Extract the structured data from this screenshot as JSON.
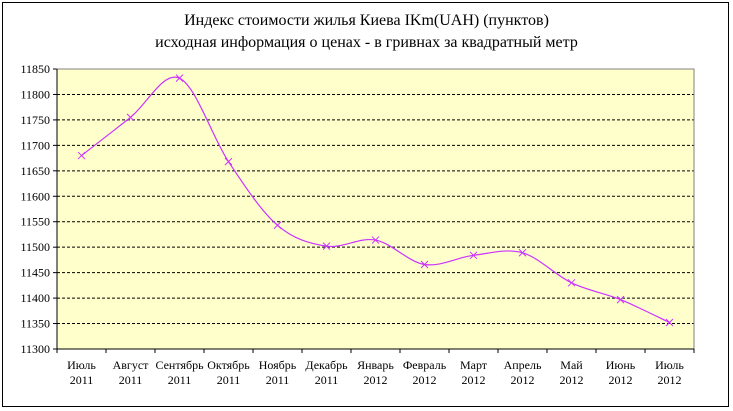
{
  "chart_data": {
    "type": "line",
    "title": "Индекс стоимости жилья Киева   IKm(UAH)    (пунктов)",
    "subtitle": "исходная  информация о ценах - в гривнах за квадратный метр",
    "categories": [
      [
        "Июль",
        "2011"
      ],
      [
        "Август",
        "2011"
      ],
      [
        "Сентябрь",
        "2011"
      ],
      [
        "Октябрь",
        "2011"
      ],
      [
        "Ноябрь",
        "2011"
      ],
      [
        "Декабрь",
        "2011"
      ],
      [
        "Январь",
        "2012"
      ],
      [
        "Февраль",
        "2012"
      ],
      [
        "Март",
        "2012"
      ],
      [
        "Апрель",
        "2012"
      ],
      [
        "Май",
        "2012"
      ],
      [
        "Июнь",
        "2012"
      ],
      [
        "Июль",
        "2012"
      ]
    ],
    "values": [
      11680,
      11755,
      11832,
      11668,
      11543,
      11502,
      11514,
      11466,
      11484,
      11489,
      11430,
      11397,
      11352
    ],
    "ylim": [
      11300,
      11850
    ],
    "ytick_step": 50,
    "grid": true,
    "colors": {
      "line": "#cc33ff",
      "plot_bg": "#ffffcc",
      "grid": "#000000"
    }
  }
}
